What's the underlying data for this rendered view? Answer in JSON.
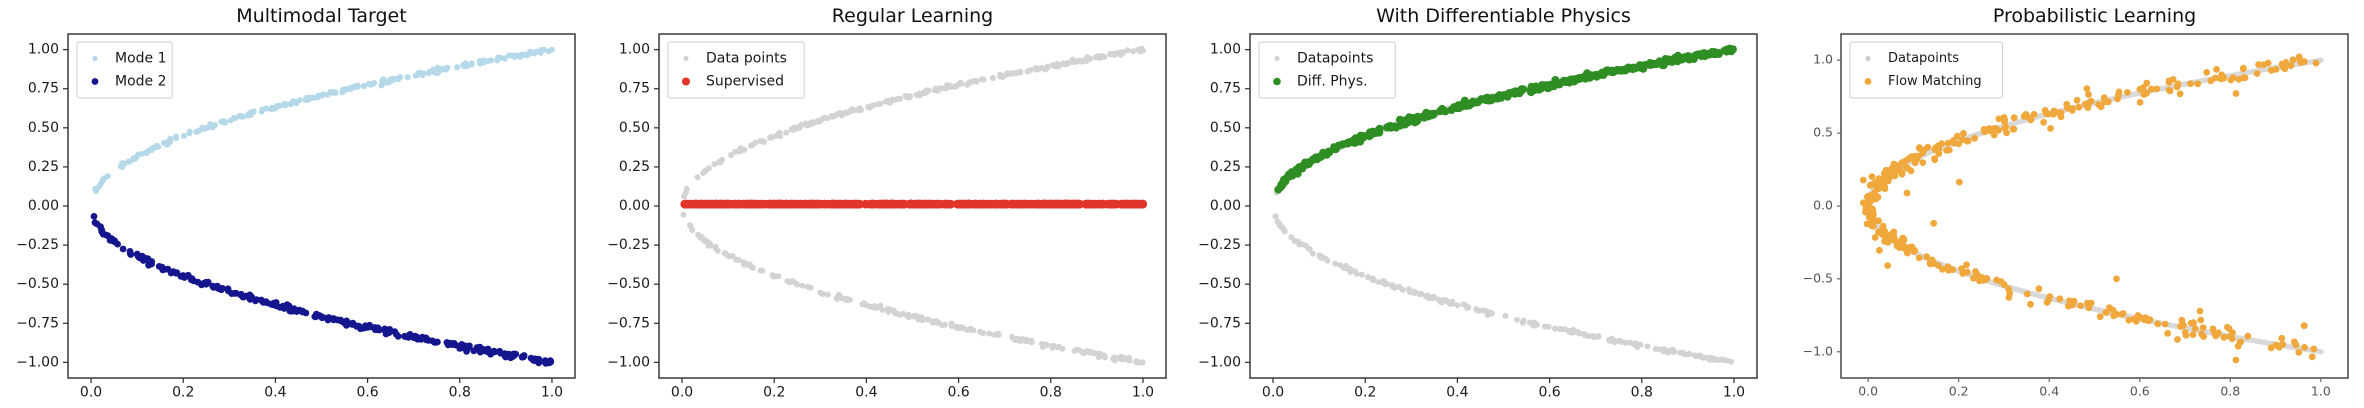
{
  "figure": {
    "background": "#ffffff",
    "panel_count": 4
  },
  "chart_data": [
    {
      "type": "scatter",
      "title": "Multimodal Target",
      "xlabel": "",
      "ylabel": "",
      "xlim": [
        -0.05,
        1.05
      ],
      "ylim": [
        -1.1,
        1.1
      ],
      "grid": false,
      "xticks": {
        "values": [
          0.0,
          0.2,
          0.4,
          0.6,
          0.8,
          1.0
        ],
        "labels": [
          "0.0",
          "0.2",
          "0.4",
          "0.6",
          "0.8",
          "1.0"
        ]
      },
      "yticks": {
        "values": [
          1.0,
          0.75,
          0.5,
          0.25,
          0.0,
          -0.25,
          -0.5,
          -0.75,
          -1.0
        ],
        "labels": [
          "1.00",
          "0.75",
          "0.50",
          "0.25",
          "0.00",
          "−0.25",
          "−0.50",
          "−0.75",
          "−1.00"
        ]
      },
      "style": {
        "spine_color": "#2a2a2a",
        "tick_color": "#2a2a2a",
        "tick_label_color": "#1a1a1a",
        "tick_fontsize": 14,
        "legend_fontsize": 14,
        "tick_len": 5
      },
      "legend": {
        "position": "upper-left",
        "entries": [
          {
            "label": "Mode 1",
            "color": "#b5d9e9",
            "marker_r": 2.6
          },
          {
            "label": "Mode 2",
            "color": "#15158e",
            "marker_r": 3.4
          }
        ]
      },
      "series": [
        {
          "name": "Mode 1",
          "color": "#b5d9e9",
          "mode": "random_x",
          "branch": 1,
          "x_min": 0.004,
          "x_max": 1.0,
          "n": 240,
          "noise": 0.006,
          "r": 3.0,
          "seed": 11,
          "description": "y = sqrt(x), upper mode of multimodal target"
        },
        {
          "name": "Mode 2",
          "color": "#15158e",
          "mode": "random_x",
          "branch": -1,
          "x_min": 0.004,
          "x_max": 1.0,
          "n": 280,
          "noise": 0.008,
          "r": 3.4,
          "seed": 22,
          "description": "y = -sqrt(x), lower mode of multimodal target"
        }
      ]
    },
    {
      "type": "scatter",
      "title": "Regular Learning",
      "xlabel": "",
      "ylabel": "",
      "xlim": [
        -0.05,
        1.05
      ],
      "ylim": [
        -1.1,
        1.1
      ],
      "grid": false,
      "xticks": {
        "values": [
          0.0,
          0.2,
          0.4,
          0.6,
          0.8,
          1.0
        ],
        "labels": [
          "0.0",
          "0.2",
          "0.4",
          "0.6",
          "0.8",
          "1.0"
        ]
      },
      "yticks": {
        "values": [
          1.0,
          0.75,
          0.5,
          0.25,
          0.0,
          -0.25,
          -0.5,
          -0.75,
          -1.0
        ],
        "labels": [
          "1.00",
          "0.75",
          "0.50",
          "0.25",
          "0.00",
          "−0.25",
          "−0.50",
          "−0.75",
          "−1.00"
        ]
      },
      "style": {
        "spine_color": "#2a2a2a",
        "tick_color": "#2a2a2a",
        "tick_label_color": "#1a1a1a",
        "tick_fontsize": 14,
        "legend_fontsize": 14,
        "tick_len": 5
      },
      "legend": {
        "position": "upper-left",
        "entries": [
          {
            "label": "Data points",
            "color": "#d3d3d3",
            "marker_r": 2.6
          },
          {
            "label": "Supervised",
            "color": "#e1352a",
            "marker_r": 4.0
          }
        ]
      },
      "series": [
        {
          "name": "Data points",
          "color": "#d3d3d3",
          "mode": "random_x",
          "branch": "both",
          "x_min": 0.002,
          "x_max": 1.0,
          "n": 420,
          "noise": 0.006,
          "r": 3.0,
          "seed": 33,
          "description": "y = ±sqrt(x) ground-truth data"
        },
        {
          "name": "Supervised",
          "color": "#e1352a",
          "mode": "random_x",
          "y_const": 0.012,
          "x_min": 0.0,
          "x_max": 1.0,
          "n": 420,
          "noise": 0.0,
          "r": 4.4,
          "seed": 44,
          "description": "collapsed supervised prediction, y ≈ 0 for all x"
        }
      ]
    },
    {
      "type": "scatter",
      "title": "With Differentiable Physics",
      "xlabel": "",
      "ylabel": "",
      "xlim": [
        -0.05,
        1.05
      ],
      "ylim": [
        -1.1,
        1.1
      ],
      "grid": false,
      "xticks": {
        "values": [
          0.0,
          0.2,
          0.4,
          0.6,
          0.8,
          1.0
        ],
        "labels": [
          "0.0",
          "0.2",
          "0.4",
          "0.6",
          "0.8",
          "1.0"
        ]
      },
      "yticks": {
        "values": [
          1.0,
          0.75,
          0.5,
          0.25,
          0.0,
          -0.25,
          -0.5,
          -0.75,
          -1.0
        ],
        "labels": [
          "1.00",
          "0.75",
          "0.50",
          "0.25",
          "0.00",
          "−0.25",
          "−0.50",
          "−0.75",
          "−1.00"
        ]
      },
      "style": {
        "spine_color": "#2a2a2a",
        "tick_color": "#2a2a2a",
        "tick_label_color": "#1a1a1a",
        "tick_fontsize": 14,
        "legend_fontsize": 14,
        "tick_len": 5
      },
      "legend": {
        "position": "upper-left",
        "entries": [
          {
            "label": "Datapoints",
            "color": "#d3d3d3",
            "marker_r": 2.6
          },
          {
            "label": "Diff. Phys.",
            "color": "#2f8e23",
            "marker_r": 3.8
          }
        ]
      },
      "series": [
        {
          "name": "Datapoints",
          "color": "#d3d3d3",
          "mode": "random_x",
          "branch": "both",
          "x_min": 0.002,
          "x_max": 1.0,
          "n": 420,
          "noise": 0.006,
          "r": 3.0,
          "seed": 55,
          "description": "y = ±sqrt(x) ground-truth data"
        },
        {
          "name": "Diff. Phys.",
          "color": "#2f8e23",
          "mode": "random_x",
          "branch": 1,
          "x_min": 0.008,
          "x_max": 1.0,
          "n": 380,
          "noise": 0.008,
          "r": 4.0,
          "seed": 66,
          "description": "prediction converged to upper mode y = sqrt(x), starting near y ≈ 0.1"
        }
      ]
    },
    {
      "type": "scatter",
      "title": "Probabilistic Learning",
      "xlabel": "",
      "ylabel": "",
      "xlim": [
        -0.06,
        1.06
      ],
      "ylim": [
        -1.18,
        1.18
      ],
      "grid": false,
      "xticks": {
        "values": [
          0.0,
          0.2,
          0.4,
          0.6,
          0.8,
          1.0
        ],
        "labels": [
          "0.0",
          "0.2",
          "0.4",
          "0.6",
          "0.8",
          "1.0"
        ]
      },
      "yticks": {
        "values": [
          1.0,
          0.5,
          0.0,
          -0.5,
          -1.0
        ],
        "labels": [
          "1.0",
          "0.5",
          "0.0",
          "−0.5",
          "−1.0"
        ]
      },
      "style": {
        "spine_color": "#3a3a3a",
        "tick_color": "#666666",
        "tick_label_color": "#555555",
        "tick_fontsize": 12.5,
        "legend_fontsize": 13,
        "tick_len": 4
      },
      "legend": {
        "position": "upper-left",
        "entries": [
          {
            "label": "Datapoints",
            "color": "#cccccc",
            "marker_r": 2.6
          },
          {
            "label": "Flow Matching",
            "color": "#f0a83c",
            "marker_r": 3.4
          }
        ]
      },
      "series": [
        {
          "name": "Datapoints",
          "color": "#d9d9d9",
          "mode": "even_t",
          "t_min": -1.0,
          "t_max": 1.0,
          "n": 700,
          "r": 2.8,
          "seed": 77,
          "description": "continuous ±sqrt(x) ground-truth curve"
        },
        {
          "name": "Flow Matching",
          "color": "#f0a83c",
          "mode": "random_t",
          "t_min": -1.0,
          "t_max": 1.0,
          "n": 400,
          "noise": 0.028,
          "x_noise": 0.006,
          "outlier_frac": 0.05,
          "outlier_scale": 0.22,
          "r": 3.4,
          "seed": 88,
          "description": "flow-matching samples covering both modes with noise and outliers"
        }
      ]
    }
  ]
}
